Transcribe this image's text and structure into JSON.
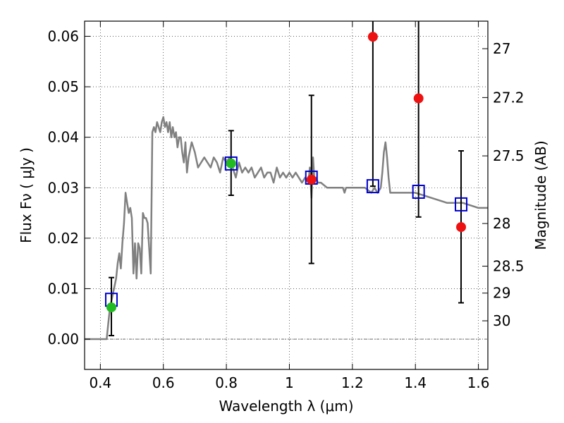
{
  "chart_data": {
    "type": "scatter",
    "xlabel": "Wavelength  λ (μm)",
    "ylabel": "Flux  Fν  ( μJy )",
    "ylabel2": "Magnitude (AB)",
    "xlim": [
      0.35,
      1.63
    ],
    "ylim": [
      -0.006,
      0.063
    ],
    "grid": true,
    "x_ticks": [
      0.4,
      0.6,
      0.8,
      1.0,
      1.2,
      1.4,
      1.6
    ],
    "x_tick_labels": [
      "0.4",
      "0.6",
      "0.8",
      "1",
      "1.2",
      "1.4",
      "1.6"
    ],
    "y_ticks": [
      0.0,
      0.01,
      0.02,
      0.03,
      0.04,
      0.05,
      0.06
    ],
    "y_tick_labels": [
      "0.00",
      "0.01",
      "0.02",
      "0.03",
      "0.04",
      "0.05",
      "0.06"
    ],
    "mag_ticks": [
      {
        "mag": 27,
        "label": "27"
      },
      {
        "mag": 27.2,
        "label": "27.2"
      },
      {
        "mag": 27.5,
        "label": "27.5"
      },
      {
        "mag": 28,
        "label": "28"
      },
      {
        "mag": 28.5,
        "label": "28.5"
      },
      {
        "mag": 29,
        "label": "29"
      },
      {
        "mag": 30,
        "label": "30"
      }
    ],
    "model_spectrum": {
      "color": "#808080",
      "x": [
        0.35,
        0.42,
        0.425,
        0.43,
        0.44,
        0.45,
        0.455,
        0.46,
        0.465,
        0.47,
        0.475,
        0.48,
        0.485,
        0.49,
        0.495,
        0.5,
        0.505,
        0.51,
        0.515,
        0.52,
        0.525,
        0.53,
        0.535,
        0.54,
        0.545,
        0.55,
        0.555,
        0.56,
        0.565,
        0.57,
        0.575,
        0.58,
        0.585,
        0.59,
        0.595,
        0.6,
        0.605,
        0.61,
        0.615,
        0.62,
        0.625,
        0.63,
        0.635,
        0.64,
        0.645,
        0.65,
        0.655,
        0.66,
        0.665,
        0.67,
        0.675,
        0.68,
        0.69,
        0.7,
        0.71,
        0.72,
        0.73,
        0.74,
        0.75,
        0.76,
        0.77,
        0.78,
        0.79,
        0.8,
        0.81,
        0.82,
        0.83,
        0.84,
        0.85,
        0.86,
        0.87,
        0.88,
        0.89,
        0.9,
        0.91,
        0.92,
        0.93,
        0.94,
        0.95,
        0.96,
        0.97,
        0.98,
        0.99,
        1.0,
        1.01,
        1.02,
        1.03,
        1.04,
        1.05,
        1.06,
        1.065,
        1.07,
        1.075,
        1.08,
        1.085,
        1.09,
        1.1,
        1.12,
        1.14,
        1.16,
        1.17,
        1.175,
        1.18,
        1.2,
        1.22,
        1.24,
        1.26,
        1.27,
        1.28,
        1.29,
        1.295,
        1.3,
        1.305,
        1.31,
        1.315,
        1.32,
        1.33,
        1.35,
        1.4,
        1.45,
        1.5,
        1.55,
        1.6,
        1.63
      ],
      "y": [
        0.0,
        0.0,
        0.003,
        0.006,
        0.009,
        0.012,
        0.015,
        0.017,
        0.014,
        0.019,
        0.023,
        0.029,
        0.027,
        0.025,
        0.026,
        0.024,
        0.013,
        0.019,
        0.012,
        0.019,
        0.018,
        0.013,
        0.025,
        0.024,
        0.024,
        0.023,
        0.018,
        0.013,
        0.041,
        0.042,
        0.041,
        0.043,
        0.042,
        0.041,
        0.043,
        0.044,
        0.042,
        0.043,
        0.041,
        0.043,
        0.04,
        0.042,
        0.04,
        0.041,
        0.038,
        0.04,
        0.04,
        0.037,
        0.035,
        0.039,
        0.033,
        0.036,
        0.039,
        0.037,
        0.034,
        0.035,
        0.036,
        0.035,
        0.034,
        0.036,
        0.035,
        0.033,
        0.036,
        0.035,
        0.036,
        0.034,
        0.032,
        0.035,
        0.033,
        0.034,
        0.033,
        0.034,
        0.032,
        0.033,
        0.034,
        0.032,
        0.033,
        0.033,
        0.031,
        0.034,
        0.032,
        0.033,
        0.032,
        0.033,
        0.032,
        0.033,
        0.032,
        0.031,
        0.032,
        0.031,
        0.034,
        0.028,
        0.036,
        0.031,
        0.032,
        0.031,
        0.031,
        0.03,
        0.03,
        0.03,
        0.03,
        0.029,
        0.03,
        0.03,
        0.03,
        0.03,
        0.029,
        0.03,
        0.029,
        0.03,
        0.033,
        0.037,
        0.039,
        0.036,
        0.032,
        0.029,
        0.029,
        0.029,
        0.029,
        0.028,
        0.027,
        0.027,
        0.026,
        0.026
      ]
    },
    "model_points": {
      "color": "#0000cc",
      "marker": "open-square",
      "x": [
        0.435,
        0.815,
        1.07,
        1.265,
        1.41,
        1.545
      ],
      "y": [
        0.0078,
        0.0348,
        0.032,
        0.0303,
        0.0292,
        0.0267
      ]
    },
    "observed": [
      {
        "x": 0.435,
        "y": 0.0063,
        "err_lo": 0.0007,
        "err_hi": 0.0122,
        "color": "#22bb22"
      },
      {
        "x": 0.815,
        "y": 0.0348,
        "err_lo": 0.0285,
        "err_hi": 0.0413,
        "color": "#22bb22"
      },
      {
        "x": 1.07,
        "y": 0.0316,
        "err_lo": 0.015,
        "err_hi": 0.0483,
        "color": "#ee1111"
      },
      {
        "x": 1.265,
        "y": 0.0599,
        "err_lo": 0.0303,
        "err_hi": 0.068,
        "color": "#ee1111"
      },
      {
        "x": 1.41,
        "y": 0.0477,
        "err_lo": 0.0242,
        "err_hi": 0.068,
        "color": "#ee1111"
      },
      {
        "x": 1.545,
        "y": 0.0222,
        "err_lo": 0.0072,
        "err_hi": 0.0373,
        "color": "#ee1111"
      }
    ],
    "zero_line": {
      "y": 0.0
    }
  }
}
